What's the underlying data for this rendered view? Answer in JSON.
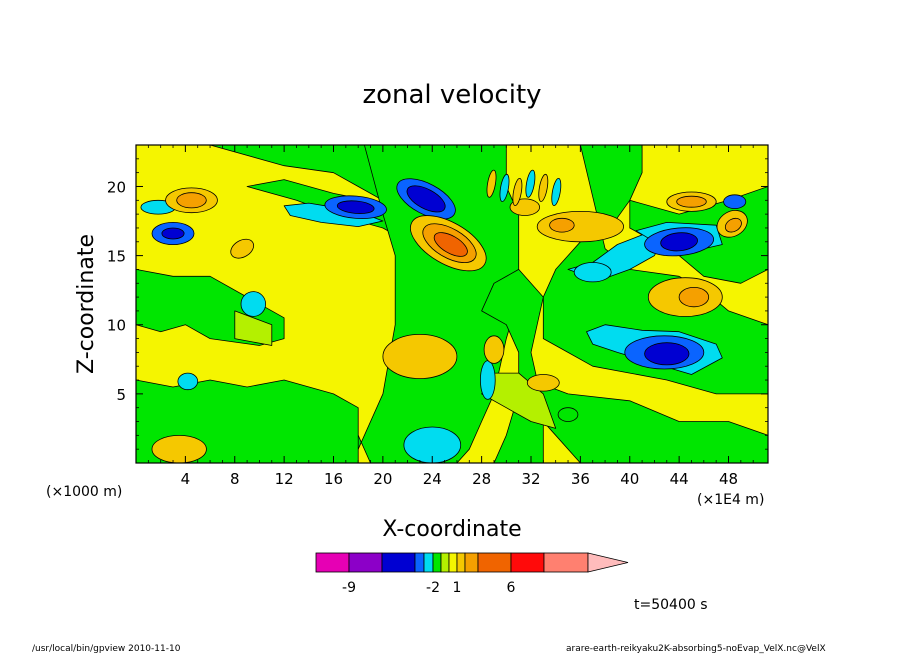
{
  "chart_data": {
    "type": "heatmap",
    "title": "zonal velocity",
    "xlabel": "X-coordinate",
    "ylabel": "Z-coordinate",
    "x_unit_left": "(×1000 m)",
    "x_unit_right": "(×1E4 m)",
    "x_ticks": [
      "4",
      "8",
      "12",
      "16",
      "20",
      "24",
      "28",
      "32",
      "36",
      "40",
      "44",
      "48"
    ],
    "y_ticks": [
      "5",
      "10",
      "15",
      "20"
    ],
    "xlim": [
      0,
      51.2
    ],
    "ylim": [
      0,
      23
    ],
    "colorbar": {
      "labels": [
        "-9",
        "-2",
        "1",
        "6"
      ],
      "levels": [
        -12,
        -9,
        -6,
        -3,
        -2,
        -1,
        0,
        1,
        2,
        3,
        6,
        9,
        12
      ],
      "colors": [
        "#e600b4",
        "#8c00c8",
        "#0000d2",
        "#0a64ff",
        "#00dcf0",
        "#00e600",
        "#b4f000",
        "#f5f500",
        "#f5c800",
        "#f5a000",
        "#f06400",
        "#ff0a0a",
        "#ff8070",
        "#ffbcbc"
      ]
    },
    "annotation": "t=50400 s",
    "features": [
      {
        "x": 25.5,
        "z": 15.8,
        "value": 8,
        "label": "strong positive maximum"
      },
      {
        "x": 23.5,
        "z": 19.2,
        "value": -8,
        "label": "strong negative minimum"
      },
      {
        "x": 43.2,
        "z": 7.9,
        "value": -7,
        "label": "negative core"
      },
      {
        "x": 44.5,
        "z": 16.5,
        "value": -7,
        "label": "negative core"
      },
      {
        "x": 48.5,
        "z": 17.2,
        "value": 5,
        "label": "positive core"
      },
      {
        "x": 5.0,
        "z": 18.9,
        "value": 5,
        "label": "positive core"
      },
      {
        "x": 23.0,
        "z": 7.8,
        "value": 3,
        "label": "positive region"
      },
      {
        "x": 23.5,
        "z": 1.0,
        "value": -2,
        "label": "negative region"
      }
    ]
  },
  "footer": {
    "left": "/usr/local/bin/gpview   2010-11-10",
    "right": "arare-earth-reikyaku2K-absorbing5-noEvap_VelX.nc@VelX"
  }
}
